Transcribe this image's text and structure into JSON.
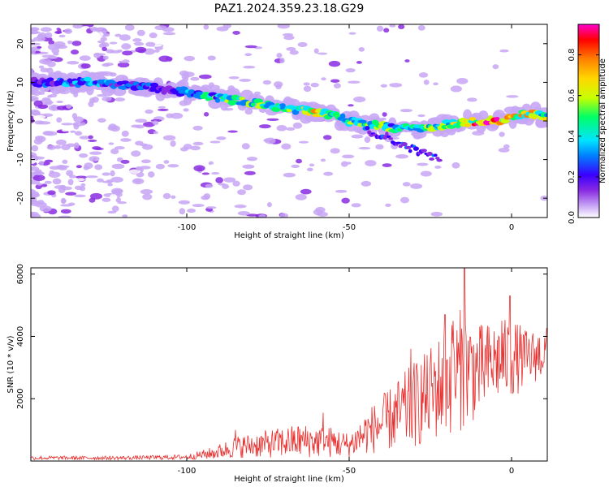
{
  "title": "PAZ1.2024.359.23.18.G29",
  "colors": {
    "snr_line": "#e8302f",
    "colormap": [
      "#ffffff",
      "#c7a6f5",
      "#8a2be2",
      "#3a00ff",
      "#0080ff",
      "#00e5ff",
      "#00ff66",
      "#c8ff00",
      "#ffd700",
      "#ff8000",
      "#ff0000",
      "#ff00cc"
    ]
  },
  "chart_data": [
    {
      "type": "heatmap",
      "xlabel": "Height of straight line (km)",
      "ylabel": "Frequency (Hz)",
      "xlim": [
        -148,
        11
      ],
      "ylim": [
        -25,
        25
      ],
      "xticks": [
        -100,
        -50,
        0
      ],
      "yticks": [
        -20,
        -10,
        0,
        10,
        20
      ],
      "colorbar": {
        "label": "Normalized spectral amplitude",
        "range": [
          0,
          0.95
        ],
        "ticks": [
          "0.0",
          "0.2",
          "0.4",
          "0.6",
          "0.8"
        ],
        "tick_values": [
          0,
          0.2,
          0.4,
          0.6,
          0.8
        ]
      },
      "ridge": [
        {
          "x": -145,
          "f": 10,
          "a": 0.3
        },
        {
          "x": -130,
          "f": 10,
          "a": 0.4
        },
        {
          "x": -115,
          "f": 9,
          "a": 0.3
        },
        {
          "x": -104,
          "f": 8,
          "a": 0.25
        },
        {
          "x": -98,
          "f": 7,
          "a": 0.4
        },
        {
          "x": -90,
          "f": 6,
          "a": 0.55
        },
        {
          "x": -82,
          "f": 5,
          "a": 0.6
        },
        {
          "x": -75,
          "f": 4,
          "a": 0.5
        },
        {
          "x": -68,
          "f": 3,
          "a": 0.6
        },
        {
          "x": -58,
          "f": 2,
          "a": 0.7
        },
        {
          "x": -50,
          "f": 0,
          "a": 0.5
        },
        {
          "x": -42,
          "f": -1,
          "a": 0.6
        },
        {
          "x": -35,
          "f": -2,
          "a": 0.5
        },
        {
          "x": -27,
          "f": -2,
          "a": 0.5
        },
        {
          "x": -20,
          "f": -1,
          "a": 0.6
        },
        {
          "x": -10,
          "f": 0,
          "a": 0.95
        },
        {
          "x": -4,
          "f": 0,
          "a": 0.85
        },
        {
          "x": 0,
          "f": 1,
          "a": 0.7
        },
        {
          "x": 5,
          "f": 2,
          "a": 0.7
        },
        {
          "x": 11,
          "f": 1,
          "a": 0.6
        }
      ]
    },
    {
      "type": "line",
      "name": "",
      "xlabel": "Height of straight line (km)",
      "ylabel": "SNR (10 * v/v)",
      "xlim": [
        -148,
        11
      ],
      "ylim": [
        0,
        6200
      ],
      "xticks": [
        -100,
        -50,
        0
      ],
      "yticks": [
        2000,
        4000,
        6000
      ],
      "envelope": [
        {
          "x": -148,
          "mean": 100,
          "spread": 60
        },
        {
          "x": -120,
          "mean": 100,
          "spread": 60
        },
        {
          "x": -100,
          "mean": 130,
          "spread": 80
        },
        {
          "x": -92,
          "mean": 250,
          "spread": 200
        },
        {
          "x": -85,
          "mean": 450,
          "spread": 350
        },
        {
          "x": -75,
          "mean": 550,
          "spread": 450
        },
        {
          "x": -65,
          "mean": 650,
          "spread": 550
        },
        {
          "x": -55,
          "mean": 600,
          "spread": 500
        },
        {
          "x": -50,
          "mean": 500,
          "spread": 400
        },
        {
          "x": -45,
          "mean": 900,
          "spread": 700
        },
        {
          "x": -38,
          "mean": 1300,
          "spread": 1000
        },
        {
          "x": -30,
          "mean": 1800,
          "spread": 1400
        },
        {
          "x": -22,
          "mean": 2400,
          "spread": 1700
        },
        {
          "x": -15,
          "mean": 3000,
          "spread": 2000
        },
        {
          "x": -10,
          "mean": 2900,
          "spread": 1500
        },
        {
          "x": -5,
          "mean": 3200,
          "spread": 1300
        },
        {
          "x": 0,
          "mean": 3300,
          "spread": 1300
        },
        {
          "x": 5,
          "mean": 3300,
          "spread": 900
        },
        {
          "x": 11,
          "mean": 3500,
          "spread": 800
        }
      ],
      "peaks": [
        {
          "x": -14.5,
          "y": 6200
        },
        {
          "x": -0.5,
          "y": 5300
        },
        {
          "x": -20.5,
          "y": 4700
        },
        {
          "x": -18,
          "y": 4500
        },
        {
          "x": -3,
          "y": 4500
        },
        {
          "x": -31,
          "y": 3600
        },
        {
          "x": -26,
          "y": 3400
        },
        {
          "x": -58,
          "y": 1550
        },
        {
          "x": -85,
          "y": 1000
        }
      ]
    }
  ]
}
